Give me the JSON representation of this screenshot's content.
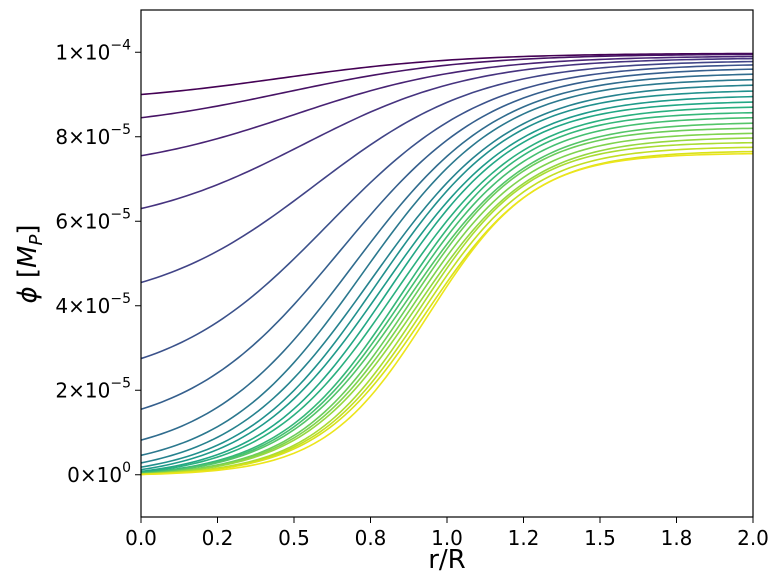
{
  "chart_data": {
    "type": "line",
    "xlabel": "r/R",
    "ylabel_symbol": "ϕ",
    "ylabel_unit_main": "M",
    "ylabel_unit_sub": "P",
    "xlim": [
      0.0,
      2.0
    ],
    "ylim": [
      -1e-05,
      0.00011
    ],
    "grid": false,
    "legend": "none",
    "x_ticks": [
      {
        "value": 0.0,
        "label": "0.0"
      },
      {
        "value": 0.25,
        "label": "0.2"
      },
      {
        "value": 0.5,
        "label": "0.5"
      },
      {
        "value": 0.75,
        "label": "0.8"
      },
      {
        "value": 1.0,
        "label": "1.0"
      },
      {
        "value": 1.25,
        "label": "1.2"
      },
      {
        "value": 1.5,
        "label": "1.5"
      },
      {
        "value": 1.75,
        "label": "1.8"
      },
      {
        "value": 2.0,
        "label": "2.0"
      }
    ],
    "y_ticks": [
      {
        "value": 0.0,
        "mantissa": "0",
        "exponent": "0"
      },
      {
        "value": 2e-05,
        "mantissa": "2",
        "exponent": "−5"
      },
      {
        "value": 4e-05,
        "mantissa": "4",
        "exponent": "−5"
      },
      {
        "value": 6e-05,
        "mantissa": "6",
        "exponent": "−5"
      },
      {
        "value": 8e-05,
        "mantissa": "8",
        "exponent": "−5"
      },
      {
        "value": 0.0001,
        "mantissa": "1",
        "exponent": "−4"
      }
    ],
    "curve_family": {
      "count": 24,
      "asymptote": 0.0001,
      "x_start": 0.0,
      "x_end": 2.0,
      "values_at_r0": [
        9e-05,
        8.45e-05,
        7.55e-05,
        6.3e-05,
        4.55e-05,
        2.75e-05,
        1.55e-05,
        8.2e-06,
        4.6e-06,
        2.8e-06,
        1.8e-06,
        1.2e-06,
        8e-07,
        6e-07,
        4.5e-07,
        3.5e-07,
        2.8e-07,
        2.2e-07,
        1.8e-07,
        1.5e-07,
        1.2e-07,
        1e-07,
        8e-08,
        6e-08
      ],
      "values_at_r2": [
        9.97e-05,
        9.95e-05,
        9.9e-05,
        9.85e-05,
        9.78e-05,
        9.7e-05,
        9.6e-05,
        9.48e-05,
        9.35e-05,
        9.22e-05,
        9.08e-05,
        8.95e-05,
        8.82e-05,
        8.7e-05,
        8.57e-05,
        8.45e-05,
        8.32e-05,
        8.2e-05,
        8.08e-05,
        7.97e-05,
        7.86e-05,
        7.75e-05,
        7.65e-05,
        7.6e-05
      ],
      "transition_center_r": [
        0.45,
        0.47,
        0.5,
        0.53,
        0.57,
        0.61,
        0.65,
        0.69,
        0.72,
        0.75,
        0.77,
        0.79,
        0.81,
        0.83,
        0.85,
        0.86,
        0.87,
        0.88,
        0.89,
        0.9,
        0.91,
        0.92,
        0.93,
        0.94
      ],
      "transition_width_r": [
        0.3,
        0.3,
        0.29,
        0.28,
        0.27,
        0.26,
        0.25,
        0.24,
        0.23,
        0.23,
        0.22,
        0.22,
        0.21,
        0.21,
        0.2,
        0.2,
        0.2,
        0.19,
        0.19,
        0.19,
        0.18,
        0.18,
        0.18,
        0.17
      ],
      "colors": [
        "#440154",
        "#471365",
        "#482374",
        "#46337f",
        "#414487",
        "#3b528b",
        "#355f8d",
        "#306c8e",
        "#2b788e",
        "#26828e",
        "#21908d",
        "#1f9a8a",
        "#22a785",
        "#2ab07f",
        "#35b779",
        "#45bf70",
        "#54c568",
        "#6ccd5a",
        "#7fd34e",
        "#95d840",
        "#aadc32",
        "#c2df23",
        "#d8e219",
        "#ece51b"
      ]
    }
  }
}
